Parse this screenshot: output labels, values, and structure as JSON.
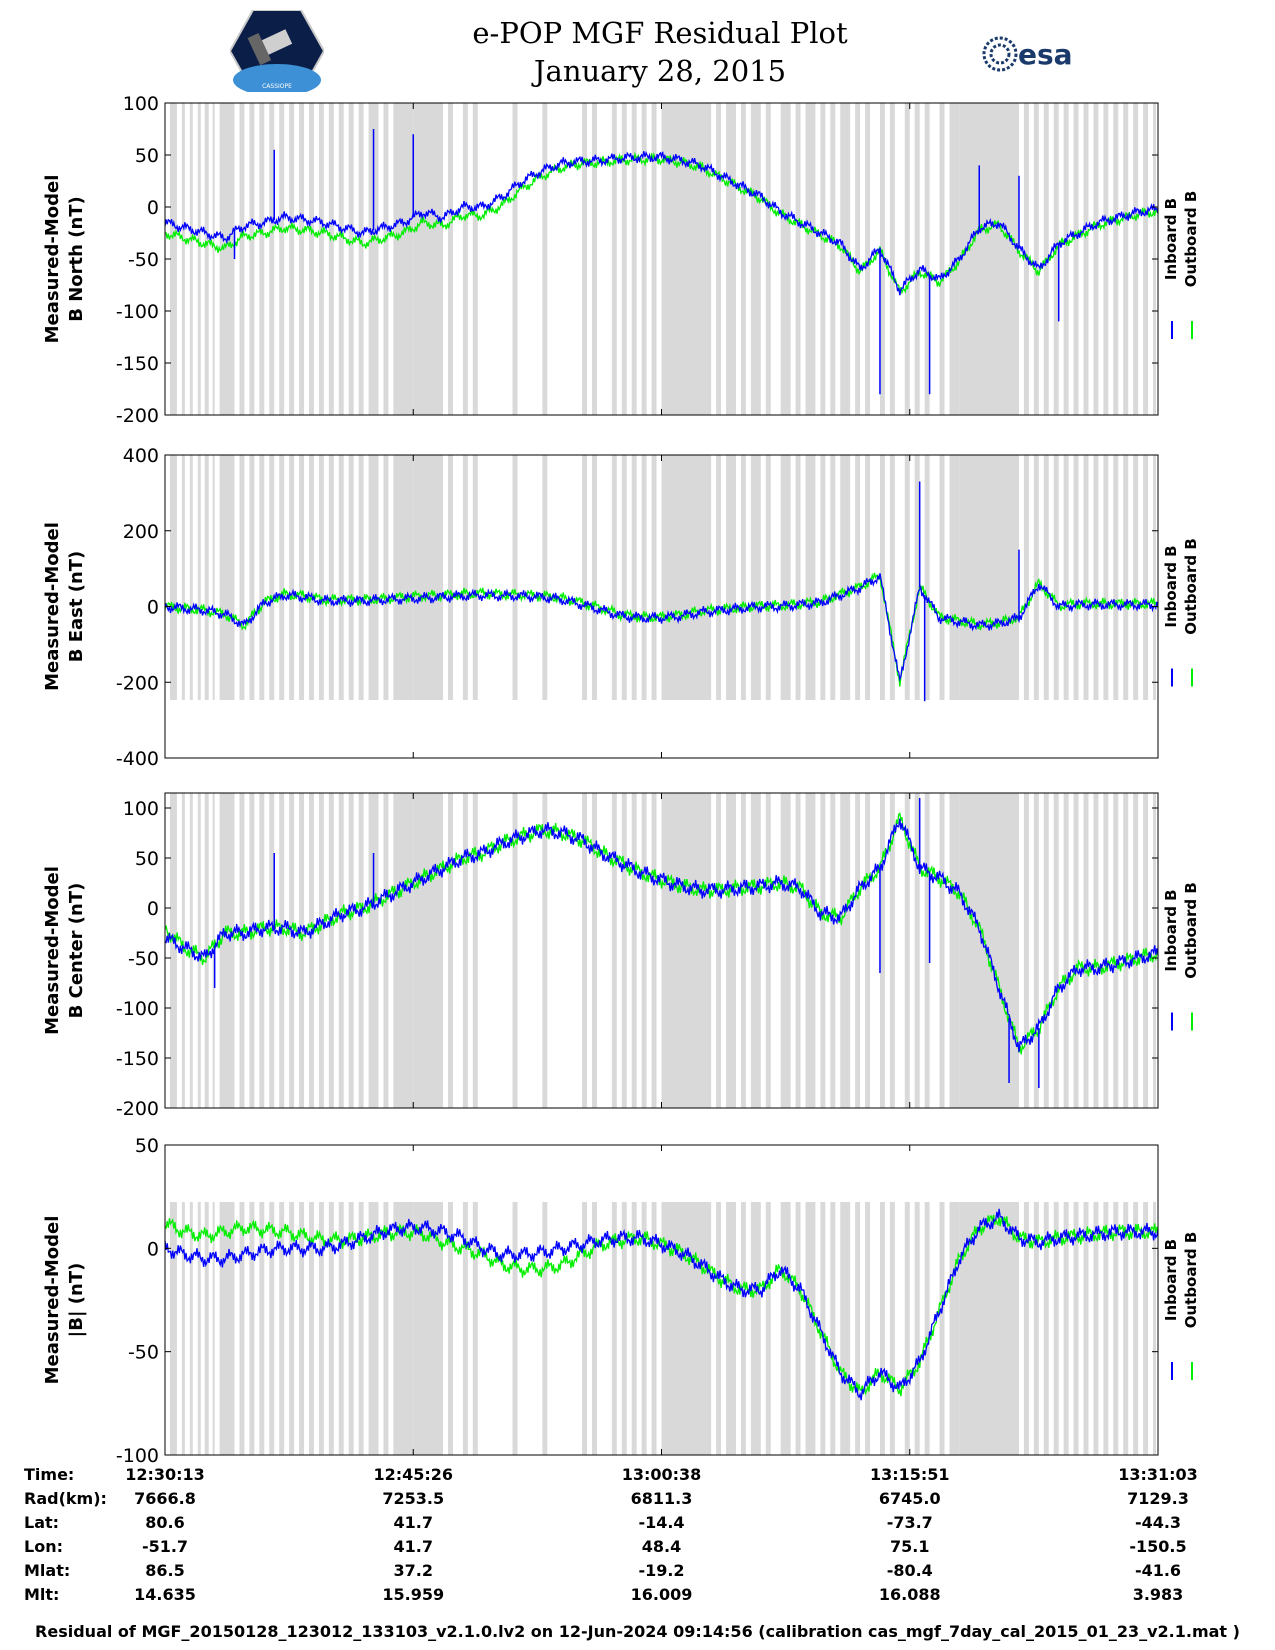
{
  "header": {
    "title_line1": "e-POP MGF Residual Plot",
    "title_line2": "January 28, 2015",
    "logo_right_text": "esa",
    "logo_left_text": "CASSIOPE"
  },
  "colors": {
    "inboard": "#0000ff",
    "outboard": "#00ee00",
    "gap": "#d9d9d9"
  },
  "legend": {
    "inboard": "Inboard B",
    "outboard": "Outboard B"
  },
  "chart_data": [
    {
      "type": "line",
      "id": "north",
      "ylabel_lines": [
        "Measured-Model",
        "B North (nT)"
      ],
      "ylim": [
        -200,
        100
      ],
      "yticks": [
        100,
        50,
        0,
        -50,
        -100,
        -150,
        -200
      ],
      "x": [
        0,
        0.02,
        0.04,
        0.06,
        0.08,
        0.1,
        0.12,
        0.14,
        0.16,
        0.18,
        0.2,
        0.22,
        0.24,
        0.26,
        0.28,
        0.3,
        0.32,
        0.34,
        0.36,
        0.38,
        0.4,
        0.42,
        0.44,
        0.46,
        0.48,
        0.5,
        0.52,
        0.54,
        0.56,
        0.58,
        0.6,
        0.62,
        0.64,
        0.66,
        0.68,
        0.7,
        0.72,
        0.74,
        0.76,
        0.78,
        0.8,
        0.82,
        0.84,
        0.86,
        0.88,
        0.9,
        0.92,
        0.94,
        0.96,
        0.98,
        1.0
      ],
      "series": [
        {
          "name": "Inboard B",
          "values": [
            -15,
            -20,
            -25,
            -30,
            -18,
            -15,
            -10,
            -12,
            -15,
            -20,
            -25,
            -20,
            -15,
            -5,
            -10,
            0,
            0,
            10,
            25,
            35,
            42,
            44,
            45,
            47,
            48,
            48,
            45,
            40,
            30,
            20,
            10,
            -5,
            -15,
            -25,
            -35,
            -60,
            -40,
            -80,
            -60,
            -70,
            -50,
            -20,
            -15,
            -40,
            -60,
            -35,
            -25,
            -15,
            -10,
            -5,
            -2
          ]
        },
        {
          "name": "Outboard B",
          "values": [
            -25,
            -30,
            -35,
            -40,
            -28,
            -25,
            -20,
            -22,
            -25,
            -30,
            -35,
            -30,
            -25,
            -15,
            -18,
            -8,
            -8,
            2,
            18,
            30,
            38,
            42,
            43,
            45,
            46,
            46,
            43,
            38,
            28,
            18,
            8,
            -7,
            -17,
            -27,
            -37,
            -62,
            -42,
            -82,
            -62,
            -72,
            -52,
            -22,
            -17,
            -42,
            -62,
            -37,
            -27,
            -17,
            -12,
            -7,
            -4
          ]
        }
      ],
      "spikes": [
        [
          0.07,
          -50
        ],
        [
          0.11,
          55
        ],
        [
          0.21,
          75
        ],
        [
          0.25,
          70
        ],
        [
          0.72,
          -180
        ],
        [
          0.77,
          -180
        ],
        [
          0.82,
          40
        ],
        [
          0.86,
          30
        ],
        [
          0.9,
          -110
        ]
      ]
    },
    {
      "type": "line",
      "id": "east",
      "ylabel_lines": [
        "Measured-Model",
        "B East (nT)"
      ],
      "ylim": [
        -400,
        400
      ],
      "yticks": [
        400,
        200,
        0,
        -200,
        -400
      ],
      "x": [
        0,
        0.02,
        0.04,
        0.06,
        0.08,
        0.1,
        0.12,
        0.14,
        0.16,
        0.18,
        0.2,
        0.22,
        0.24,
        0.26,
        0.28,
        0.3,
        0.32,
        0.34,
        0.36,
        0.38,
        0.4,
        0.42,
        0.44,
        0.46,
        0.48,
        0.5,
        0.52,
        0.54,
        0.56,
        0.58,
        0.6,
        0.62,
        0.64,
        0.66,
        0.68,
        0.7,
        0.72,
        0.74,
        0.76,
        0.78,
        0.8,
        0.82,
        0.84,
        0.86,
        0.88,
        0.9,
        0.92,
        0.94,
        0.96,
        0.98,
        1.0
      ],
      "series": [
        {
          "name": "Inboard B",
          "values": [
            0,
            -5,
            -10,
            -20,
            -50,
            10,
            30,
            25,
            15,
            15,
            15,
            18,
            20,
            22,
            25,
            28,
            30,
            28,
            28,
            25,
            18,
            5,
            -10,
            -25,
            -30,
            -30,
            -25,
            -15,
            -10,
            -5,
            0,
            0,
            5,
            10,
            30,
            50,
            80,
            -200,
            50,
            -30,
            -40,
            -50,
            -45,
            -30,
            60,
            0,
            5,
            5,
            5,
            5,
            5
          ]
        },
        {
          "name": "Outboard B",
          "values": [
            0,
            -5,
            -10,
            -20,
            -50,
            12,
            32,
            28,
            18,
            18,
            18,
            20,
            25,
            28,
            30,
            33,
            35,
            32,
            31,
            28,
            22,
            10,
            -5,
            -22,
            -28,
            -28,
            -22,
            -12,
            -8,
            -3,
            2,
            2,
            7,
            12,
            32,
            52,
            82,
            -198,
            52,
            -28,
            -38,
            -48,
            -43,
            -28,
            62,
            2,
            7,
            7,
            7,
            7,
            7
          ]
        }
      ],
      "spikes": [
        [
          0.76,
          330
        ],
        [
          0.765,
          -250
        ],
        [
          0.86,
          150
        ]
      ]
    },
    {
      "type": "line",
      "id": "center",
      "ylabel_lines": [
        "Measured-Model",
        "B Center (nT)"
      ],
      "ylim": [
        -200,
        115
      ],
      "yticks": [
        100,
        50,
        0,
        -50,
        -100,
        -150,
        -200
      ],
      "x": [
        0,
        0.02,
        0.04,
        0.06,
        0.08,
        0.1,
        0.12,
        0.14,
        0.16,
        0.18,
        0.2,
        0.22,
        0.24,
        0.26,
        0.28,
        0.3,
        0.32,
        0.34,
        0.36,
        0.38,
        0.4,
        0.42,
        0.44,
        0.46,
        0.48,
        0.5,
        0.52,
        0.54,
        0.56,
        0.58,
        0.6,
        0.62,
        0.64,
        0.66,
        0.68,
        0.7,
        0.72,
        0.74,
        0.76,
        0.78,
        0.8,
        0.82,
        0.84,
        0.86,
        0.88,
        0.9,
        0.92,
        0.94,
        0.96,
        0.98,
        1.0
      ],
      "series": [
        {
          "name": "Inboard B",
          "values": [
            -30,
            -40,
            -50,
            -25,
            -25,
            -20,
            -20,
            -25,
            -15,
            -5,
            0,
            10,
            20,
            30,
            40,
            50,
            55,
            65,
            72,
            78,
            75,
            68,
            55,
            45,
            35,
            28,
            22,
            18,
            18,
            20,
            22,
            25,
            20,
            -5,
            -10,
            20,
            40,
            90,
            40,
            30,
            15,
            -20,
            -80,
            -140,
            -120,
            -80,
            -60,
            -60,
            -55,
            -50,
            -45
          ]
        },
        {
          "name": "Outboard B",
          "values": [
            -20,
            -40,
            -50,
            -25,
            -25,
            -20,
            -20,
            -25,
            -15,
            -5,
            0,
            10,
            20,
            30,
            40,
            50,
            55,
            65,
            72,
            78,
            75,
            68,
            55,
            45,
            35,
            28,
            22,
            18,
            18,
            20,
            22,
            25,
            20,
            -5,
            -10,
            20,
            40,
            90,
            40,
            30,
            15,
            -20,
            -80,
            -140,
            -120,
            -80,
            -60,
            -60,
            -55,
            -50,
            -45
          ]
        }
      ],
      "spikes": [
        [
          0.05,
          -80
        ],
        [
          0.11,
          55
        ],
        [
          0.21,
          55
        ],
        [
          0.72,
          -65
        ],
        [
          0.76,
          110
        ],
        [
          0.77,
          -55
        ],
        [
          0.85,
          -175
        ],
        [
          0.88,
          -180
        ]
      ]
    },
    {
      "type": "line",
      "id": "total",
      "ylabel_lines": [
        "Measured-Model",
        "|B| (nT)"
      ],
      "ylim": [
        -100,
        50
      ],
      "yticks": [
        50,
        0,
        -50,
        -100
      ],
      "x": [
        0,
        0.02,
        0.04,
        0.06,
        0.08,
        0.1,
        0.12,
        0.14,
        0.16,
        0.18,
        0.2,
        0.22,
        0.24,
        0.26,
        0.28,
        0.3,
        0.32,
        0.34,
        0.36,
        0.38,
        0.4,
        0.42,
        0.44,
        0.46,
        0.48,
        0.5,
        0.52,
        0.54,
        0.56,
        0.58,
        0.6,
        0.62,
        0.64,
        0.66,
        0.68,
        0.7,
        0.72,
        0.74,
        0.76,
        0.78,
        0.8,
        0.82,
        0.84,
        0.86,
        0.88,
        0.9,
        0.92,
        0.94,
        0.96,
        0.98,
        1.0
      ],
      "series": [
        {
          "name": "Inboard B",
          "values": [
            0,
            -3,
            -5,
            -5,
            -3,
            -1,
            0,
            0,
            0,
            2,
            5,
            8,
            10,
            10,
            8,
            5,
            0,
            -3,
            -3,
            -2,
            0,
            2,
            4,
            5,
            5,
            2,
            -2,
            -8,
            -15,
            -20,
            -20,
            -10,
            -20,
            -40,
            -60,
            -70,
            -60,
            -68,
            -55,
            -30,
            -5,
            10,
            15,
            5,
            3,
            5,
            6,
            7,
            8,
            8,
            8
          ]
        },
        {
          "name": "Outboard B",
          "values": [
            12,
            8,
            6,
            8,
            10,
            9,
            8,
            6,
            4,
            4,
            5,
            7,
            8,
            7,
            3,
            0,
            -3,
            -8,
            -10,
            -10,
            -8,
            -3,
            2,
            4,
            5,
            2,
            -2,
            -8,
            -15,
            -20,
            -20,
            -10,
            -20,
            -40,
            -60,
            -70,
            -60,
            -68,
            -55,
            -30,
            -5,
            10,
            15,
            5,
            3,
            5,
            6,
            7,
            8,
            8,
            8
          ]
        }
      ],
      "spikes": []
    }
  ],
  "gaps": [
    [
      0.005,
      0.012
    ],
    [
      0.017,
      0.02
    ],
    [
      0.025,
      0.028
    ],
    [
      0.033,
      0.036
    ],
    [
      0.04,
      0.044
    ],
    [
      0.048,
      0.05
    ],
    [
      0.055,
      0.07
    ],
    [
      0.075,
      0.08
    ],
    [
      0.085,
      0.09
    ],
    [
      0.095,
      0.1
    ],
    [
      0.105,
      0.11
    ],
    [
      0.115,
      0.12
    ],
    [
      0.125,
      0.13
    ],
    [
      0.135,
      0.14
    ],
    [
      0.145,
      0.15
    ],
    [
      0.155,
      0.16
    ],
    [
      0.165,
      0.17
    ],
    [
      0.175,
      0.18
    ],
    [
      0.185,
      0.19
    ],
    [
      0.195,
      0.2
    ],
    [
      0.205,
      0.215
    ],
    [
      0.22,
      0.225
    ],
    [
      0.23,
      0.25
    ],
    [
      0.25,
      0.28
    ],
    [
      0.285,
      0.29
    ],
    [
      0.3,
      0.305
    ],
    [
      0.31,
      0.315
    ],
    [
      0.35,
      0.355
    ],
    [
      0.38,
      0.385
    ],
    [
      0.42,
      0.425
    ],
    [
      0.43,
      0.435
    ],
    [
      0.45,
      0.455
    ],
    [
      0.46,
      0.465
    ],
    [
      0.47,
      0.475
    ],
    [
      0.48,
      0.485
    ],
    [
      0.49,
      0.495
    ],
    [
      0.5,
      0.55
    ],
    [
      0.555,
      0.56
    ],
    [
      0.565,
      0.575
    ],
    [
      0.58,
      0.585
    ],
    [
      0.59,
      0.6
    ],
    [
      0.605,
      0.61
    ],
    [
      0.62,
      0.63
    ],
    [
      0.635,
      0.64
    ],
    [
      0.645,
      0.655
    ],
    [
      0.66,
      0.665
    ],
    [
      0.67,
      0.675
    ],
    [
      0.68,
      0.69
    ],
    [
      0.695,
      0.7
    ],
    [
      0.705,
      0.71
    ],
    [
      0.72,
      0.725
    ],
    [
      0.73,
      0.735
    ],
    [
      0.745,
      0.75
    ],
    [
      0.755,
      0.76
    ],
    [
      0.765,
      0.77
    ],
    [
      0.78,
      0.785
    ],
    [
      0.79,
      0.8
    ],
    [
      0.8,
      0.86
    ],
    [
      0.865,
      0.87
    ],
    [
      0.875,
      0.88
    ],
    [
      0.885,
      0.89
    ],
    [
      0.895,
      0.9
    ],
    [
      0.905,
      0.91
    ],
    [
      0.915,
      0.92
    ],
    [
      0.925,
      0.93
    ],
    [
      0.935,
      0.94
    ],
    [
      0.945,
      0.95
    ],
    [
      0.955,
      0.96
    ],
    [
      0.965,
      0.97
    ],
    [
      0.975,
      0.98
    ],
    [
      0.985,
      0.99
    ],
    [
      0.995,
      0.998
    ]
  ],
  "table": {
    "row_labels": [
      "Time:",
      "Rad(km):",
      "Lat:",
      "Lon:",
      "Mlat:",
      "Mlt:"
    ],
    "columns": [
      {
        "values": [
          "12:30:13",
          "7666.8",
          "80.6",
          "-51.7",
          "86.5",
          "14.635"
        ]
      },
      {
        "values": [
          "12:45:26",
          "7253.5",
          "41.7",
          "41.7",
          "37.2",
          "15.959"
        ]
      },
      {
        "values": [
          "13:00:38",
          "6811.3",
          "-14.4",
          "48.4",
          "-19.2",
          "16.009"
        ]
      },
      {
        "values": [
          "13:15:51",
          "6745.0",
          "-73.7",
          "75.1",
          "-80.4",
          "16.088"
        ]
      },
      {
        "values": [
          "13:31:03",
          "7129.3",
          "-44.3",
          "-150.5",
          "-41.6",
          "3.983"
        ]
      }
    ]
  },
  "footer": "Residual of MGF_20150128_123012_133103_v2.1.0.lv2 on 12-Jun-2024 09:14:56 (calibration cas_mgf_7day_cal_2015_01_23_v2.1.mat )"
}
